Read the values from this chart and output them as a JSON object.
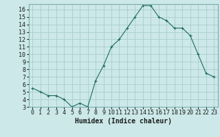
{
  "x": [
    0,
    1,
    2,
    3,
    4,
    5,
    6,
    7,
    8,
    9,
    10,
    11,
    12,
    13,
    14,
    15,
    16,
    17,
    18,
    19,
    20,
    21,
    22,
    23
  ],
  "y": [
    5.5,
    5.0,
    4.5,
    4.5,
    4.0,
    3.0,
    3.5,
    3.0,
    6.5,
    8.5,
    11.0,
    12.0,
    13.5,
    15.0,
    16.5,
    16.5,
    15.0,
    14.5,
    13.5,
    13.5,
    12.5,
    10.0,
    7.5,
    7.0
  ],
  "xlabel": "Humidex (Indice chaleur)",
  "xlim": [
    -0.5,
    23.5
  ],
  "ylim": [
    3,
    16.7
  ],
  "ytick_values": [
    3,
    4,
    5,
    6,
    7,
    8,
    9,
    10,
    11,
    12,
    13,
    14,
    15,
    16
  ],
  "line_color": "#1a6b5e",
  "marker": "+",
  "bg_color": "#cce8e8",
  "grid_color": "#aacccc",
  "font_color": "#1a1a1a",
  "tick_fontsize": 6,
  "xlabel_fontsize": 7
}
